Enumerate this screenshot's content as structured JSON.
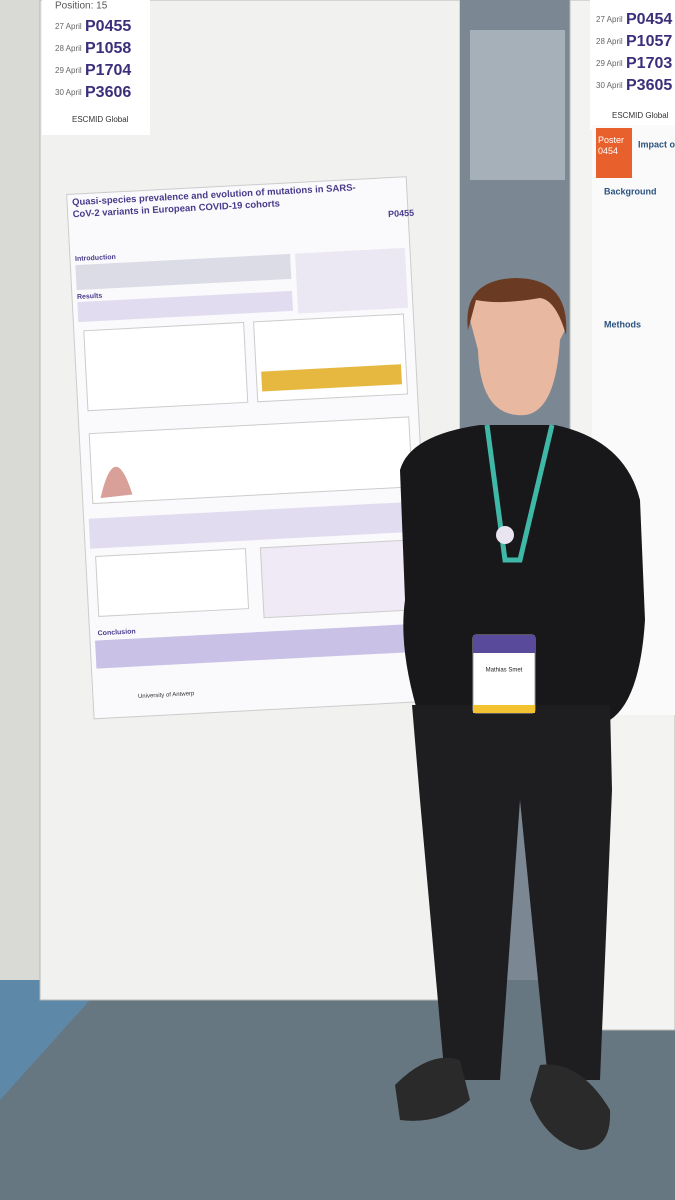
{
  "left_schedule": {
    "position": "Position: 15",
    "sessions": [
      {
        "date": "27 April",
        "code": "P0455"
      },
      {
        "date": "28 April",
        "code": "P1058"
      },
      {
        "date": "29 April",
        "code": "P1704"
      },
      {
        "date": "30 April",
        "code": "P3606"
      }
    ],
    "brand": "ESCMID Global"
  },
  "right_schedule": {
    "sessions": [
      {
        "date": "27 April",
        "code": "P0454"
      },
      {
        "date": "28 April",
        "code": "P1057"
      },
      {
        "date": "29 April",
        "code": "P1703"
      },
      {
        "date": "30 April",
        "code": "P3605"
      }
    ],
    "brand": "ESCMID Global"
  },
  "poster": {
    "title": "Quasi-species prevalence and evolution of mutations in SARS-CoV-2 variants in European COVID-19 cohorts",
    "code": "P0455",
    "sections": [
      "Introduction",
      "Results",
      "Conclusion"
    ],
    "institution": "University of Antwerp"
  },
  "neighbor_poster": {
    "label": "Poster 0454",
    "title": "Impact of",
    "sections": [
      "Background",
      "Methods"
    ]
  },
  "badge": {
    "name": "Mathias Smet"
  }
}
